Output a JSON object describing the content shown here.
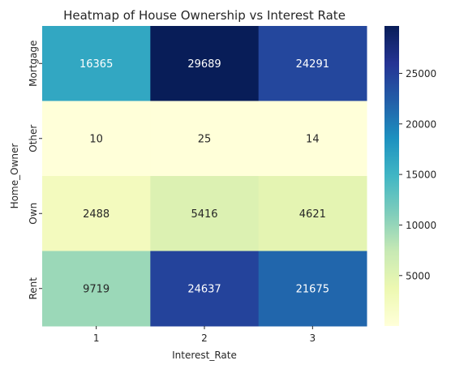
{
  "chart_data": {
    "type": "heatmap",
    "title": "Heatmap of House Ownership vs Interest Rate",
    "xlabel": "Interest_Rate",
    "ylabel": "Home_Owner",
    "x_categories": [
      "1",
      "2",
      "3"
    ],
    "y_categories": [
      "Mortgage",
      "Other",
      "Own",
      "Rent"
    ],
    "values": [
      [
        16365,
        29689,
        24291
      ],
      [
        10,
        25,
        14
      ],
      [
        2488,
        5416,
        4621
      ],
      [
        9719,
        24637,
        21675
      ]
    ],
    "color_range": [
      10,
      29689
    ],
    "colormap": "YlGnBu",
    "colorbar_ticks": [
      5000,
      10000,
      15000,
      20000,
      25000
    ],
    "colorbar_labels": [
      "5000",
      "10000",
      "15000",
      "20000",
      "25000"
    ],
    "legend": "colorbar-right",
    "grid": false
  }
}
